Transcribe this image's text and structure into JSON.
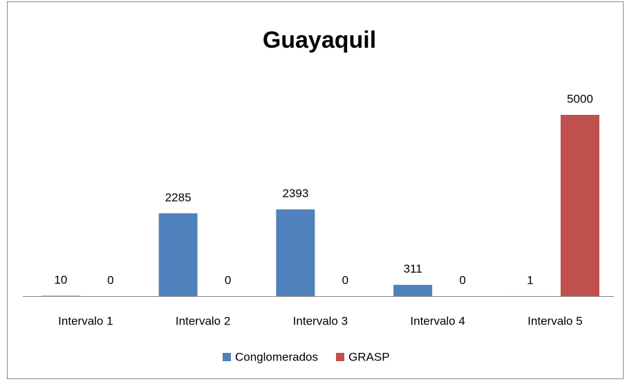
{
  "chart_data": {
    "type": "bar",
    "title": "Guayaquil",
    "categories": [
      "Intervalo 1",
      "Intervalo 2",
      "Intervalo 3",
      "Intervalo 4",
      "Intervalo 5"
    ],
    "series": [
      {
        "name": "Conglomerados",
        "color": "#4f81bd",
        "values": [
          10,
          2285,
          2393,
          311,
          1
        ]
      },
      {
        "name": "GRASP",
        "color": "#c0504d",
        "values": [
          0,
          0,
          0,
          0,
          5000
        ]
      }
    ],
    "legend": "bottom"
  }
}
